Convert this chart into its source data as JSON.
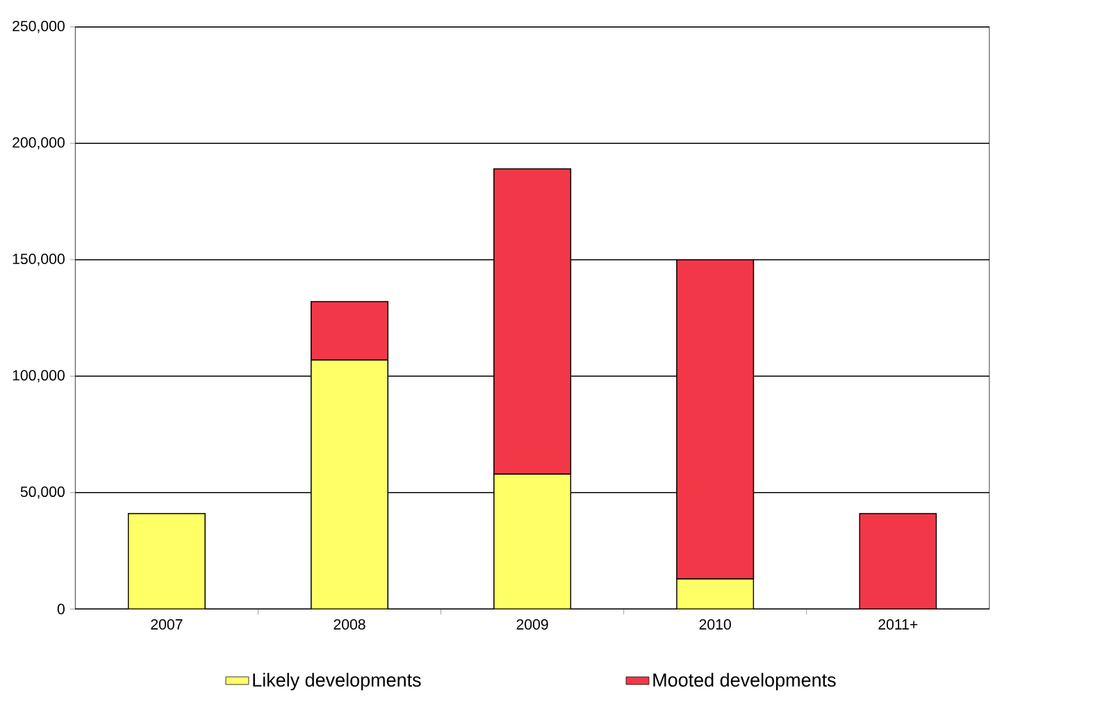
{
  "chart_data": {
    "type": "bar",
    "stacked": true,
    "categories": [
      "2007",
      "2008",
      "2009",
      "2010",
      "2011+"
    ],
    "series": [
      {
        "name": "Likely developments",
        "color": "#ffff66",
        "values": [
          41000,
          107000,
          58000,
          13000,
          null
        ]
      },
      {
        "name": "Mooted developments",
        "color": "#f23848",
        "values": [
          null,
          25000,
          131000,
          137000,
          41000
        ]
      }
    ],
    "ylim": [
      0,
      250000
    ],
    "yticks": [
      {
        "value": 0,
        "label": "0"
      },
      {
        "value": 50000,
        "label": "50,000"
      },
      {
        "value": 100000,
        "label": "100,000"
      },
      {
        "value": 150000,
        "label": "150,000"
      },
      {
        "value": 200000,
        "label": "200,000"
      },
      {
        "value": 250000,
        "label": "250,000"
      }
    ],
    "grid": "y",
    "legend": "bottom"
  }
}
